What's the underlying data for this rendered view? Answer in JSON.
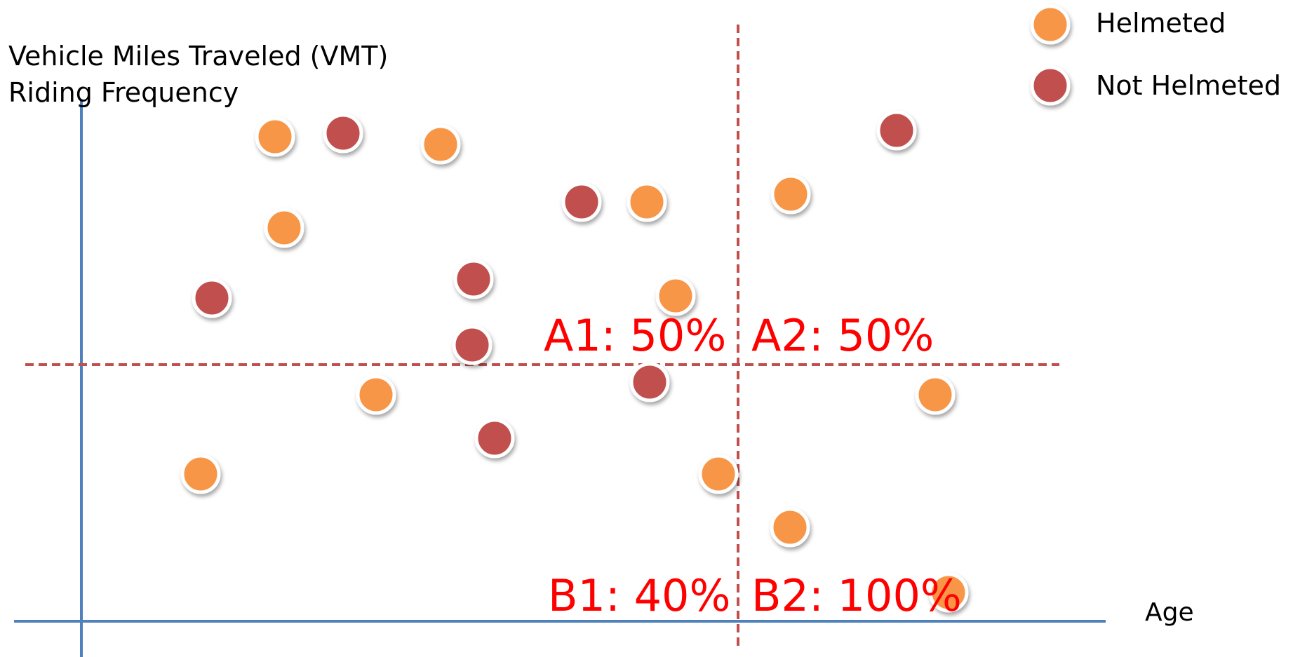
{
  "axes": {
    "y_label_line1": "Vehicle Miles Traveled (VMT)",
    "y_label_line2": "Riding Frequency",
    "x_label": "Age"
  },
  "legend": {
    "helmeted": "Helmeted",
    "not_helmeted": "Not Helmeted"
  },
  "quadrants": {
    "a1": "A1: 50%",
    "a2": "A2: 50%",
    "b1": "B1: 40%",
    "b2": "B2: 100%"
  },
  "colors": {
    "helmeted": "#f79646",
    "not_helmeted": "#c0504d",
    "axis": "#4f81bd",
    "divider": "#c0504d",
    "quadrant_text": "#ff0000"
  },
  "points": [
    {
      "type": "helmeted"
    },
    {
      "type": "not_helmeted"
    },
    {
      "type": "helmeted"
    },
    {
      "type": "not_helmeted"
    },
    {
      "type": "helmeted"
    },
    {
      "type": "helmeted"
    },
    {
      "type": "not_helmeted"
    },
    {
      "type": "helmeted"
    },
    {
      "type": "not_helmeted"
    },
    {
      "type": "not_helmeted"
    },
    {
      "type": "helmeted"
    },
    {
      "type": "not_helmeted"
    },
    {
      "type": "helmeted"
    },
    {
      "type": "not_helmeted"
    },
    {
      "type": "helmeted"
    },
    {
      "type": "helmeted"
    },
    {
      "type": "not_helmeted"
    },
    {
      "type": "helmeted"
    },
    {
      "type": "helmeted"
    },
    {
      "type": "helmeted"
    },
    {
      "type": "helmeted"
    }
  ]
}
